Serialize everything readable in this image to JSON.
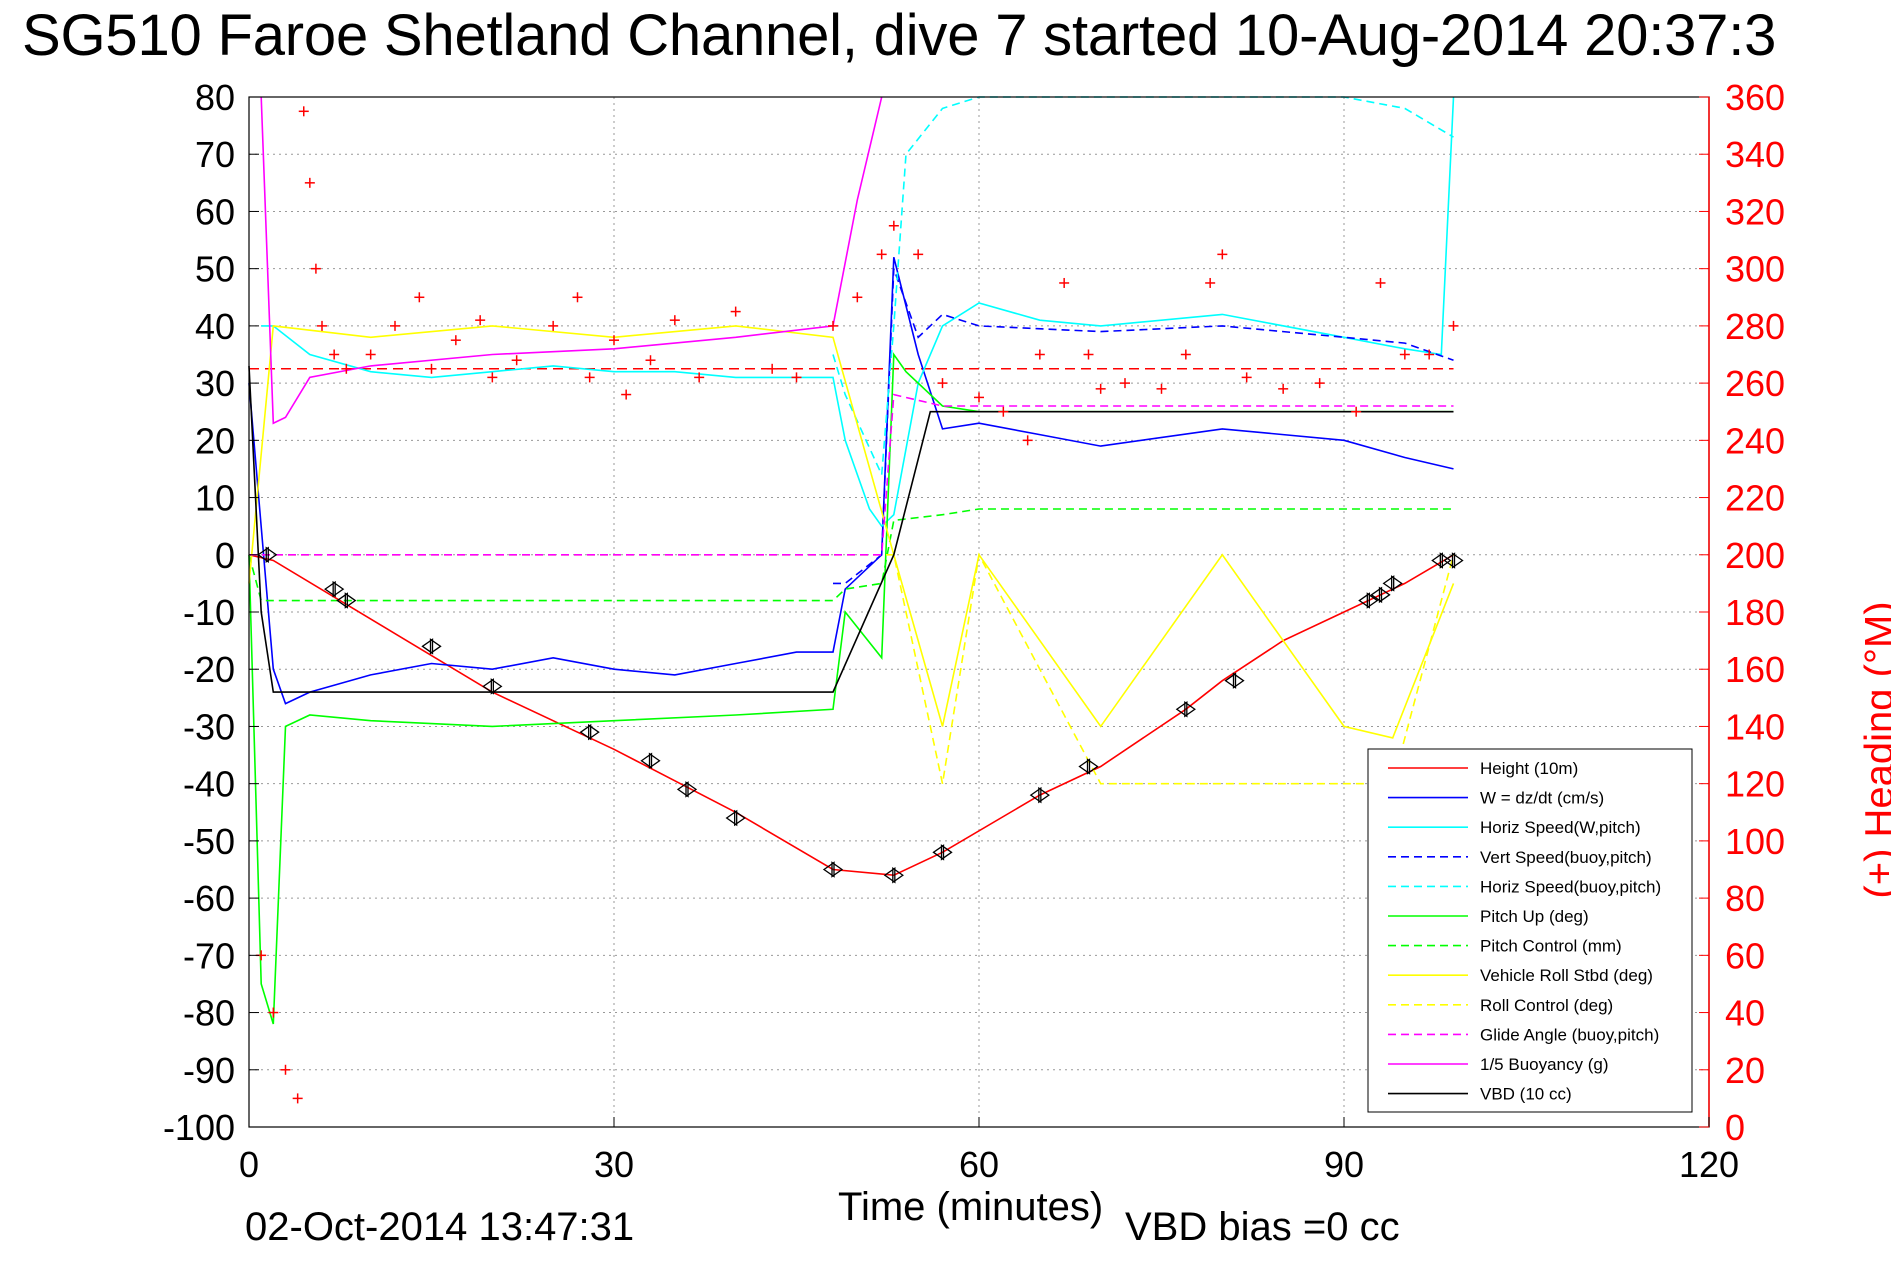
{
  "chart_data": {
    "type": "line",
    "title": "SG510 Faroe Shetland Channel, dive 7 started 10-Aug-2014 20:37:3",
    "xlabel": "Time (minutes)",
    "ylabel": "",
    "ylabel_right": "(+) Heading (°M)",
    "footer_date": "02-Oct-2014 13:47:31",
    "footer_note": "VBD bias =0 cc",
    "xlim": [
      0,
      120
    ],
    "ylim": [
      -100,
      80
    ],
    "ylim_right": [
      0,
      360
    ],
    "x_ticks": [
      "0",
      "30",
      "60",
      "90",
      "120"
    ],
    "y_ticks": [
      "80",
      "70",
      "60",
      "50",
      "40",
      "30",
      "20",
      "10",
      "0",
      "-10",
      "-20",
      "-30",
      "-40",
      "-50",
      "-60",
      "-70",
      "-80",
      "-90",
      "-100"
    ],
    "y_right_ticks": [
      "360",
      "340",
      "320",
      "300",
      "280",
      "260",
      "240",
      "220",
      "200",
      "180",
      "160",
      "140",
      "120",
      "100",
      "80",
      "60",
      "40",
      "20",
      "0"
    ],
    "grid": true,
    "legend_position": "bottom-right",
    "colors": {
      "height": "#ff0000",
      "w": "#0000ff",
      "horiz_speed": "#00ffff",
      "vert_speed_buoy": "#0000ff",
      "horiz_speed_buoy": "#00ffff",
      "pitch_up": "#00ff00",
      "pitch_control": "#00ff00",
      "roll": "#ffff00",
      "roll_control": "#ffff00",
      "glide_angle": "#ff00ff",
      "buoyancy": "#ff00ff",
      "vbd": "#000000",
      "heading": "#ff0000"
    },
    "series": [
      {
        "name": "Height (10m)",
        "style": "solid",
        "color": "#ff0000",
        "x": [
          0,
          2,
          20,
          30,
          40,
          48,
          53,
          57,
          65,
          70,
          77,
          80,
          85,
          90,
          95,
          99
        ],
        "y": [
          0,
          -1,
          -24,
          -34,
          -45,
          -55,
          -56,
          -52,
          -42,
          -37,
          -27,
          -22,
          -15,
          -10,
          -5,
          0
        ]
      },
      {
        "name": "W = dz/dt (cm/s)",
        "style": "solid",
        "color": "#0000ff",
        "x": [
          0,
          2,
          3,
          5,
          10,
          15,
          20,
          25,
          30,
          35,
          40,
          45,
          48,
          49,
          52,
          53,
          55,
          57,
          60,
          65,
          70,
          80,
          90,
          95,
          99
        ],
        "y": [
          30,
          -20,
          -26,
          -24,
          -21,
          -19,
          -20,
          -18,
          -20,
          -21,
          -19,
          -17,
          -17,
          -6,
          0,
          52,
          35,
          22,
          23,
          21,
          19,
          22,
          20,
          17,
          15
        ]
      },
      {
        "name": "Horiz Speed(W,pitch)",
        "style": "solid",
        "color": "#00ffff",
        "x": [
          1,
          2,
          5,
          10,
          15,
          20,
          25,
          30,
          35,
          40,
          48,
          49,
          51,
          52,
          53,
          55,
          57,
          60,
          65,
          70,
          80,
          90,
          95,
          98,
          99
        ],
        "y": [
          40,
          40,
          35,
          32,
          31,
          32,
          33,
          32,
          32,
          31,
          31,
          20,
          8,
          5,
          7,
          30,
          40,
          44,
          41,
          40,
          42,
          38,
          36,
          35,
          80
        ]
      },
      {
        "name": "Vert Speed(buoy,pitch)",
        "style": "dashed",
        "color": "#0000ff",
        "x": [
          48,
          49,
          52,
          53,
          55,
          57,
          60,
          70,
          80,
          90,
          95,
          99
        ],
        "y": [
          -5,
          -5,
          0,
          50,
          38,
          42,
          40,
          39,
          40,
          38,
          37,
          34
        ]
      },
      {
        "name": "Horiz Speed(buoy,pitch)",
        "style": "dashed",
        "color": "#00ffff",
        "x": [
          48,
          49,
          52,
          53,
          54,
          57,
          60,
          70,
          80,
          90,
          95,
          99
        ],
        "y": [
          35,
          28,
          14,
          40,
          70,
          78,
          82,
          80,
          81,
          80,
          78,
          73
        ]
      },
      {
        "name": "Pitch Up (deg)",
        "style": "solid",
        "color": "#00ff00",
        "x": [
          0,
          1,
          2,
          3,
          5,
          10,
          20,
          30,
          40,
          48,
          49,
          52,
          53,
          54,
          57,
          60,
          70,
          80,
          90,
          99
        ],
        "y": [
          0,
          -75,
          -82,
          -30,
          -28,
          -29,
          -30,
          -29,
          -28,
          -27,
          -10,
          -18,
          35,
          32,
          26,
          25,
          25,
          25,
          25,
          25
        ]
      },
      {
        "name": "Pitch Control (mm)",
        "style": "dashed",
        "color": "#00ff00",
        "x": [
          0,
          1,
          2,
          48,
          49,
          52,
          53,
          57,
          60,
          70,
          80,
          90,
          99
        ],
        "y": [
          0,
          -8,
          -8,
          -8,
          -6,
          -5,
          6,
          7,
          8,
          8,
          8,
          8,
          8
        ]
      },
      {
        "name": "Vehicle Roll Stbd (deg)",
        "style": "solid",
        "color": "#ffff00",
        "x": [
          0,
          2,
          10,
          20,
          30,
          40,
          48,
          53,
          57,
          60,
          70,
          80,
          90,
          94,
          99
        ],
        "y": [
          -5,
          40,
          38,
          40,
          38,
          40,
          38,
          0,
          -30,
          0,
          -30,
          0,
          -30,
          -32,
          -5
        ]
      },
      {
        "name": "Roll Control (deg)",
        "style": "dashed",
        "color": "#ffff00",
        "x": [
          0,
          2,
          53,
          57,
          60,
          70,
          81,
          94,
          99
        ],
        "y": [
          0,
          0,
          0,
          -40,
          0,
          -40,
          -40,
          -40,
          0
        ]
      },
      {
        "name": "Glide Angle (buoy,pitch)",
        "style": "dashed",
        "color": "#ff00ff",
        "x": [
          0,
          52,
          53,
          57,
          60,
          70,
          80,
          90,
          99
        ],
        "y": [
          0,
          0,
          28,
          26,
          26,
          26,
          26,
          26,
          26
        ]
      },
      {
        "name": "1/5 Buoyancy (g)",
        "style": "solid",
        "color": "#ff00ff",
        "x": [
          1,
          2,
          3,
          5,
          10,
          20,
          30,
          40,
          48,
          50,
          52
        ],
        "y": [
          80,
          23,
          24,
          31,
          33,
          35,
          36,
          38,
          40,
          62,
          80
        ]
      },
      {
        "name": "VBD (10 cc)",
        "style": "solid",
        "color": "#000000",
        "x": [
          0,
          1,
          2,
          48,
          53,
          56,
          57,
          60,
          70,
          80,
          90,
          99
        ],
        "y": [
          33,
          -10,
          -24,
          -24,
          0,
          25,
          25,
          25,
          25,
          25,
          25,
          25
        ]
      }
    ],
    "heading_points": {
      "name": "Heading",
      "marker": "+",
      "axis": "right",
      "x": [
        1,
        2,
        3,
        4,
        4.5,
        5,
        5.5,
        6,
        7,
        8,
        10,
        12,
        14,
        15,
        17,
        19,
        20,
        22,
        25,
        27,
        28,
        30,
        31,
        33,
        35,
        37,
        40,
        43,
        45,
        48,
        50,
        52,
        53,
        55,
        57,
        60,
        62,
        64,
        65,
        67,
        69,
        70,
        72,
        75,
        77,
        79,
        80,
        82,
        85,
        88,
        91,
        93,
        95,
        97,
        99
      ],
      "y": [
        60,
        40,
        20,
        10,
        355,
        330,
        300,
        280,
        270,
        265,
        270,
        280,
        290,
        265,
        275,
        282,
        262,
        268,
        280,
        290,
        262,
        275,
        256,
        268,
        282,
        262,
        285,
        265,
        262,
        280,
        290,
        305,
        315,
        305,
        260,
        255,
        250,
        240,
        270,
        295,
        270,
        258,
        260,
        258,
        270,
        295,
        305,
        262,
        258,
        260,
        250,
        295,
        270,
        270,
        280
      ]
    },
    "depth_markers": {
      "name": "Height markers",
      "x": [
        1.5,
        7,
        8,
        15,
        20,
        28,
        33,
        36,
        40,
        48,
        53,
        57,
        65,
        69,
        77,
        81,
        92,
        93,
        94,
        98,
        99
      ],
      "y": [
        0,
        -6,
        -8,
        -16,
        -23,
        -31,
        -36,
        -41,
        -46,
        -55,
        -56,
        -52,
        -42,
        -37,
        -27,
        -22,
        -8,
        -7,
        -5,
        -1,
        -1
      ]
    },
    "reference_lines": [
      {
        "style": "dashed",
        "color": "#ff0000",
        "axis": "right",
        "y": 265
      }
    ]
  }
}
